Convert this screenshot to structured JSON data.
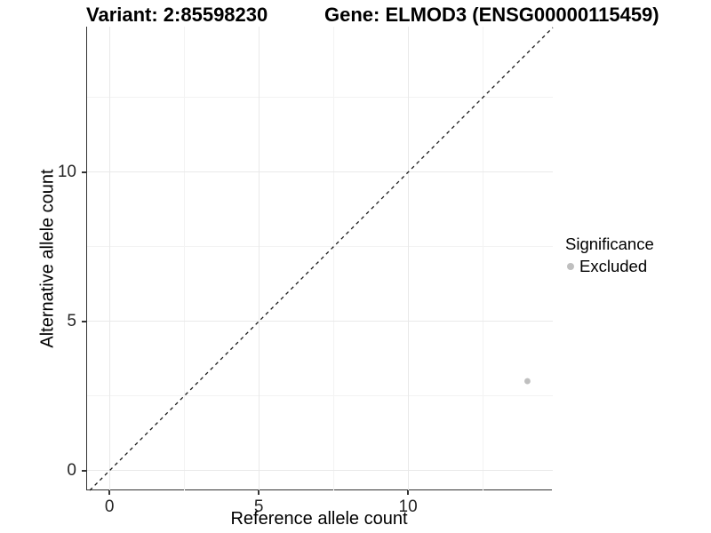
{
  "header": {
    "variant_title": "Variant: 2:85598230",
    "gene_title": "Gene: ELMOD3 (ENSG00000115459)"
  },
  "chart_data": {
    "type": "scatter",
    "title": "Variant: 2:85598230 | Gene: ELMOD3 (ENSG00000115459)",
    "xlabel": "Reference allele count",
    "ylabel": "Alternative allele count",
    "xlim": [
      -0.75,
      14.85
    ],
    "ylim": [
      -0.66,
      14.88
    ],
    "x_ticks": [
      0,
      5,
      10
    ],
    "y_ticks": [
      0,
      5,
      10
    ],
    "x_minor_ticks": [
      2.5,
      7.5,
      12.5
    ],
    "y_minor_ticks": [
      2.5,
      7.5,
      12.5
    ],
    "grid": {
      "major": true,
      "minor": true
    },
    "reference_line": {
      "style": "dashed",
      "equation": "y = x"
    },
    "series": [
      {
        "name": "Excluded",
        "color": "#bfbfbf",
        "points": [
          {
            "x": 14,
            "y": 3
          }
        ]
      }
    ],
    "legend": {
      "title": "Significance",
      "position": "right",
      "entries": [
        {
          "label": "Excluded",
          "color": "#bfbfbf"
        }
      ]
    }
  },
  "colors": {
    "background": "#ffffff",
    "axis_line": "#333333",
    "tick_mark": "#333333",
    "tick_text": "#262626",
    "grid_major": "#e9e9e9",
    "grid_minor": "#f3f3f3",
    "reference_line": "#1a1a1a",
    "excluded_point": "#bfbfbf"
  }
}
